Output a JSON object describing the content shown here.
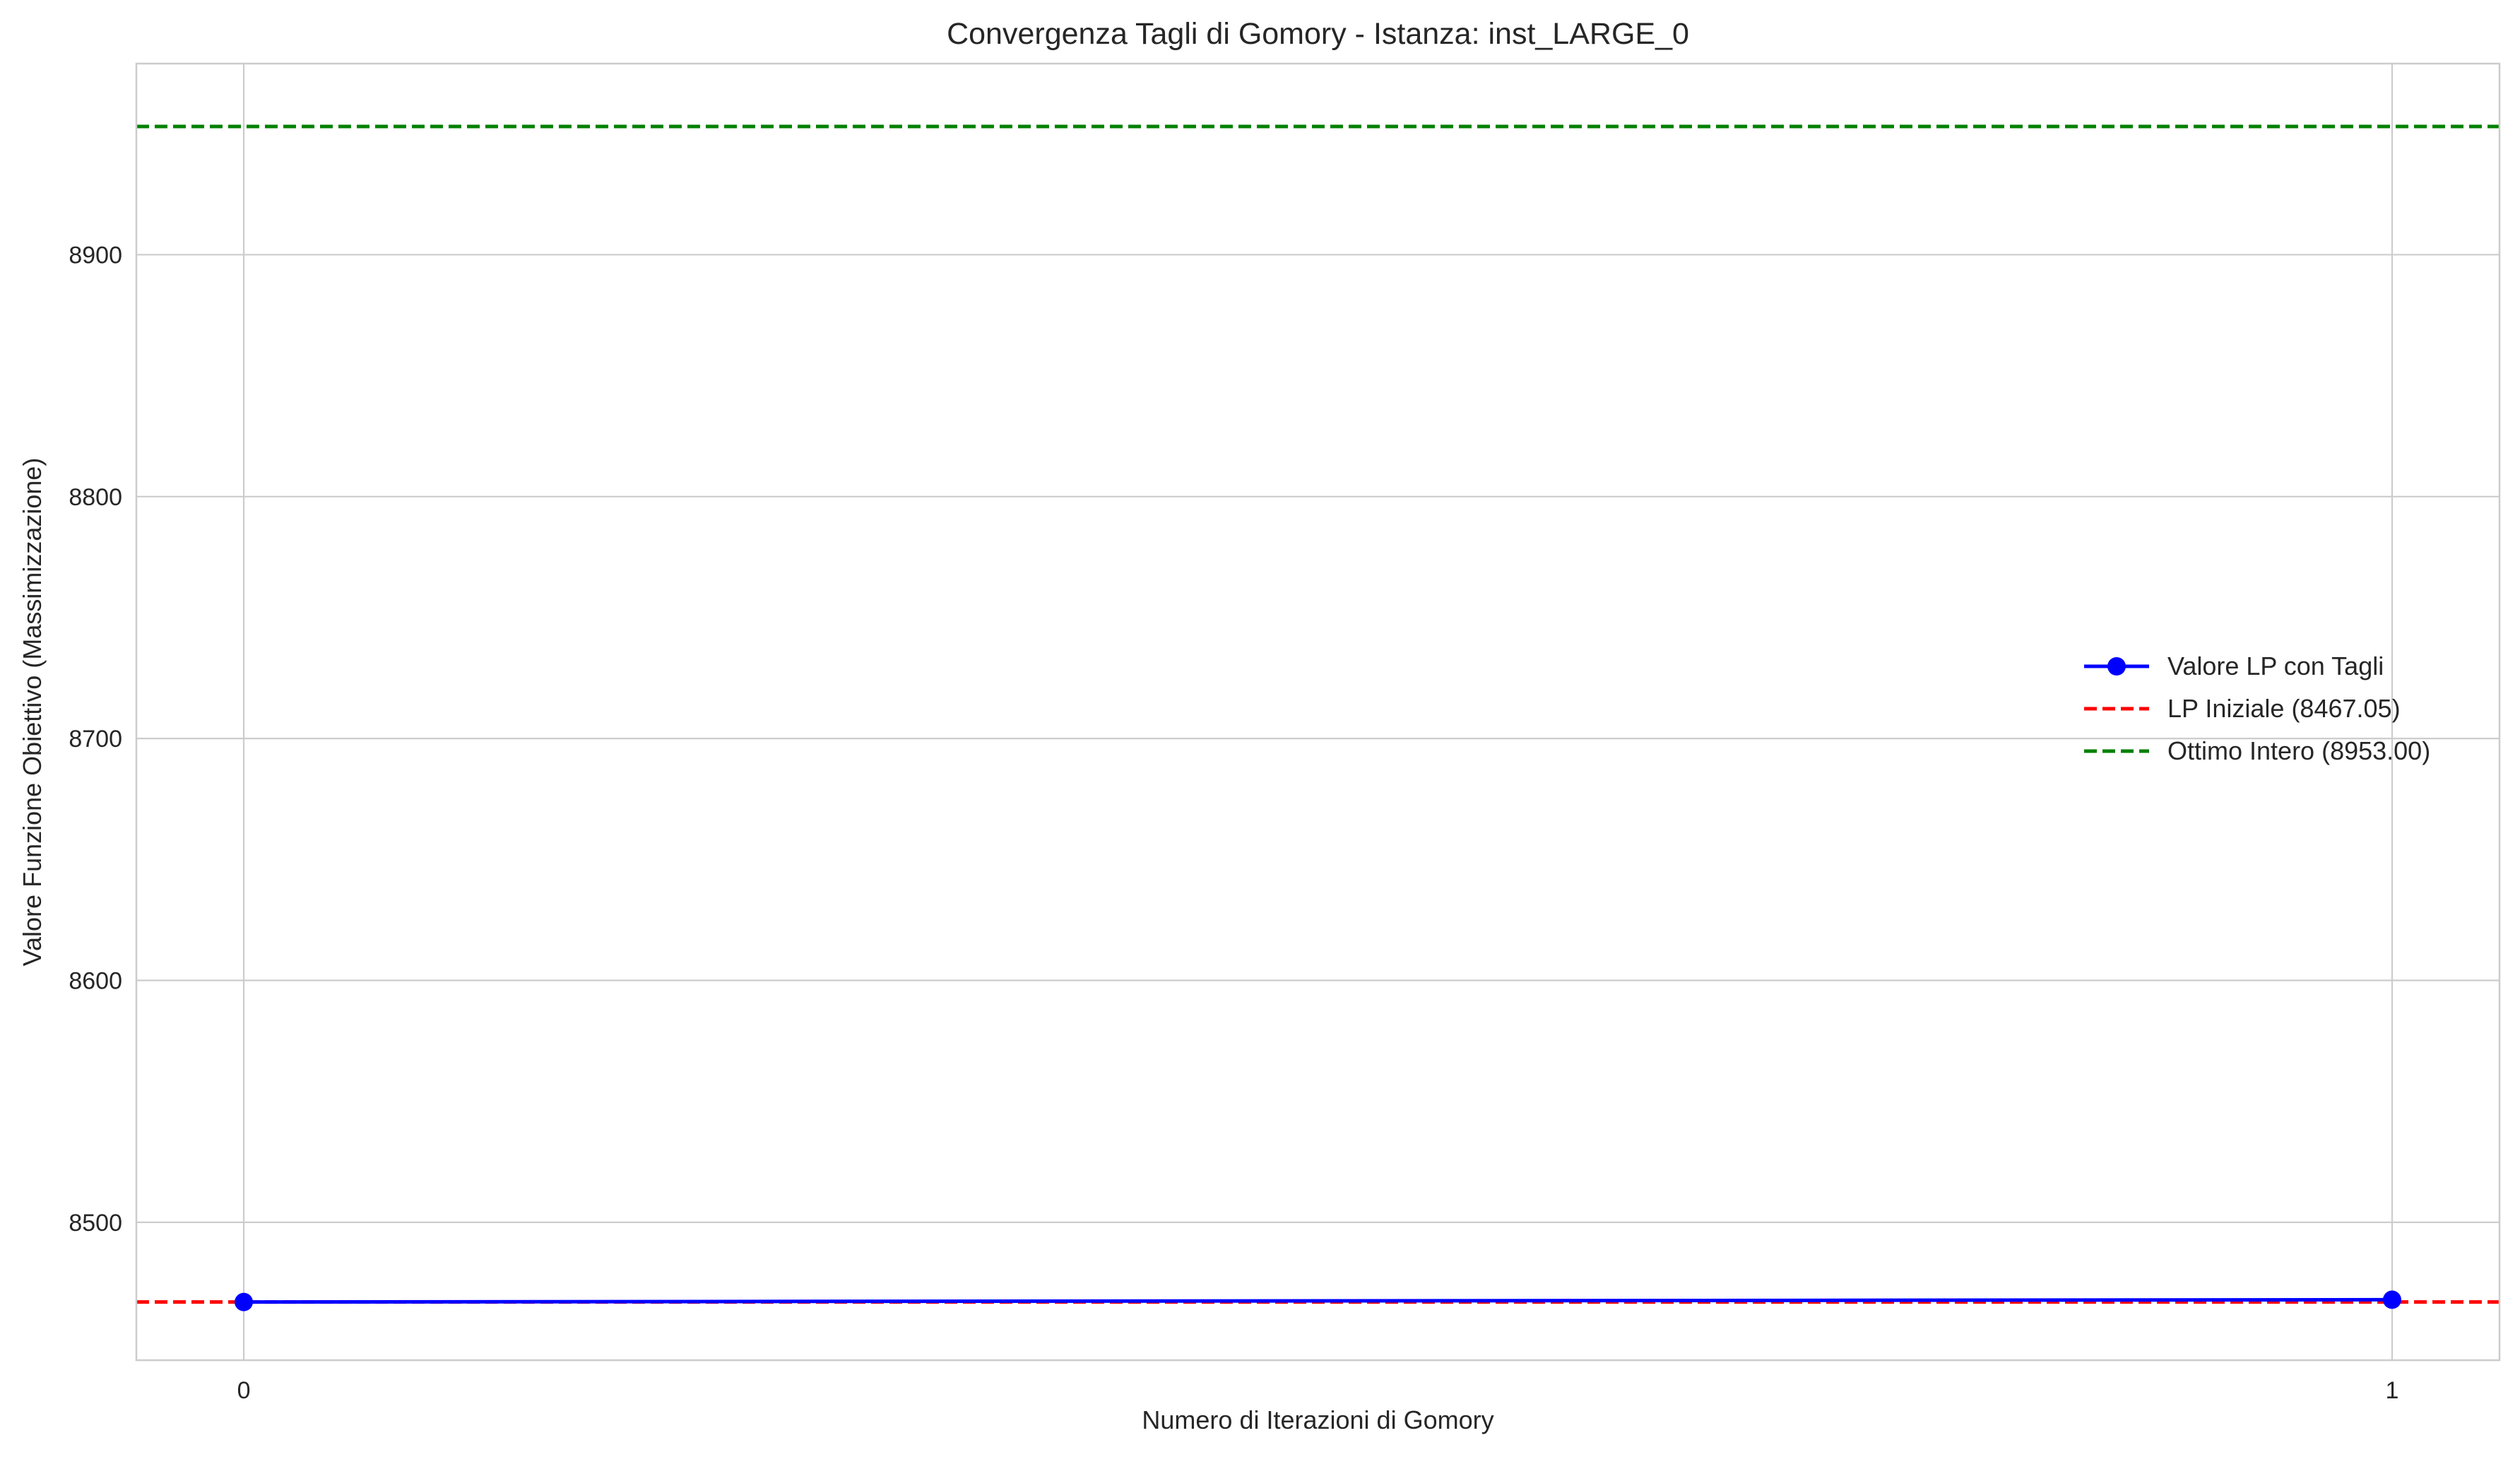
{
  "chart_data": {
    "type": "line",
    "title": "Convergenza Tagli di Gomory - Istanza: inst_LARGE_0",
    "xlabel": "Numero di Iterazioni di Gomory",
    "ylabel": "Valore Funzione Obiettivo (Massimizzazione)",
    "x": [
      0,
      1
    ],
    "x_ticks": [
      0,
      1
    ],
    "x_tick_labels": [
      "0",
      "1"
    ],
    "xlim": [
      -0.05,
      1.05
    ],
    "ylim": [
      8443,
      8979
    ],
    "y_ticks": [
      8500,
      8600,
      8700,
      8800,
      8900
    ],
    "y_tick_labels": [
      "8500",
      "8600",
      "8700",
      "8800",
      "8900"
    ],
    "grid": true,
    "legend_position": "center-right",
    "series": [
      {
        "name": "Valore LP con Tagli",
        "values": [
          8467.05,
          8468.0
        ],
        "color": "#0000ff",
        "style": "solid",
        "marker": "circle"
      }
    ],
    "reference_lines": [
      {
        "name": "LP Iniziale (8467.05)",
        "y": 8467.05,
        "color": "#ff0000",
        "style": "dashed"
      },
      {
        "name": "Ottimo Intero (8953.00)",
        "y": 8953.0,
        "color": "#008000",
        "style": "dashed"
      }
    ]
  }
}
